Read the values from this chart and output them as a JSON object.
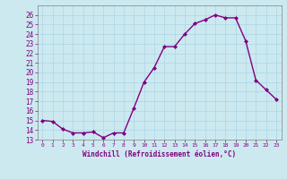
{
  "x": [
    0,
    1,
    2,
    3,
    4,
    5,
    6,
    7,
    8,
    9,
    10,
    11,
    12,
    13,
    14,
    15,
    16,
    17,
    18,
    19,
    20,
    21,
    22,
    23
  ],
  "y": [
    15.0,
    14.9,
    14.1,
    13.7,
    13.7,
    13.8,
    13.2,
    13.7,
    13.7,
    16.3,
    19.0,
    20.5,
    22.7,
    22.7,
    24.0,
    25.1,
    25.5,
    26.0,
    25.7,
    25.7,
    23.3,
    19.2,
    18.2,
    17.2
  ],
  "line_color": "#800080",
  "marker": "D",
  "marker_size": 2,
  "linewidth": 1.0,
  "xlabel": "Windchill (Refroidissement éolien,°C)",
  "ylim": [
    13,
    27
  ],
  "xlim": [
    -0.5,
    23.5
  ],
  "yticks": [
    13,
    14,
    15,
    16,
    17,
    18,
    19,
    20,
    21,
    22,
    23,
    24,
    25,
    26
  ],
  "xticks": [
    0,
    1,
    2,
    3,
    4,
    5,
    6,
    7,
    8,
    9,
    10,
    11,
    12,
    13,
    14,
    15,
    16,
    17,
    18,
    19,
    20,
    21,
    22,
    23
  ],
  "background_color": "#cce9f0",
  "grid_color": "#b0d8e8",
  "tick_color": "#800080",
  "label_color": "#800080",
  "spine_color": "#808080"
}
